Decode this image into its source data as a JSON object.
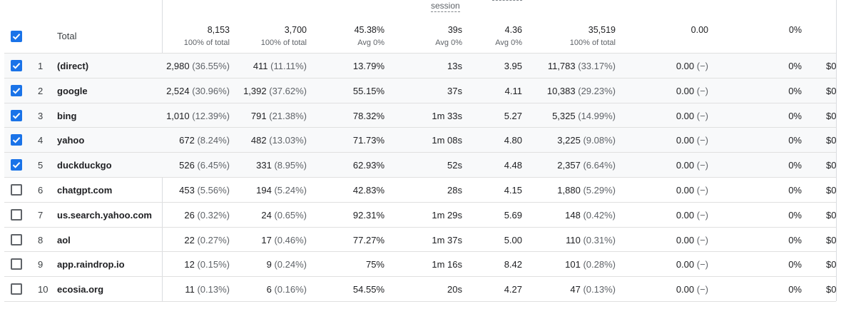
{
  "header": {
    "session_label": "session",
    "total_label": "Total",
    "totals": [
      {
        "value": "8,153",
        "sub": "100% of total"
      },
      {
        "value": "3,700",
        "sub": "100% of total"
      },
      {
        "value": "45.38%",
        "sub": "Avg 0%"
      },
      {
        "value": "39s",
        "sub": "Avg 0%"
      },
      {
        "value": "4.36",
        "sub": "Avg 0%"
      },
      {
        "value": "35,519",
        "sub": "100% of total"
      },
      {
        "value": "0.00",
        "sub": ""
      },
      {
        "value": "0%",
        "sub": ""
      }
    ]
  },
  "rows": [
    {
      "index": "1",
      "checked": true,
      "source": "(direct)",
      "c1": "2,980",
      "c1p": "(36.55%)",
      "c2": "411",
      "c2p": "(11.11%)",
      "c3": "13.79%",
      "c4": "13s",
      "c5": "3.95",
      "c6": "11,783",
      "c6p": "(33.17%)",
      "c7": "0.00",
      "c7p": "(−)",
      "c8": "0%",
      "c9": "$0"
    },
    {
      "index": "2",
      "checked": true,
      "source": "google",
      "c1": "2,524",
      "c1p": "(30.96%)",
      "c2": "1,392",
      "c2p": "(37.62%)",
      "c3": "55.15%",
      "c4": "37s",
      "c5": "4.11",
      "c6": "10,383",
      "c6p": "(29.23%)",
      "c7": "0.00",
      "c7p": "(−)",
      "c8": "0%",
      "c9": "$0"
    },
    {
      "index": "3",
      "checked": true,
      "source": "bing",
      "c1": "1,010",
      "c1p": "(12.39%)",
      "c2": "791",
      "c2p": "(21.38%)",
      "c3": "78.32%",
      "c4": "1m 33s",
      "c5": "5.27",
      "c6": "5,325",
      "c6p": "(14.99%)",
      "c7": "0.00",
      "c7p": "(−)",
      "c8": "0%",
      "c9": "$0"
    },
    {
      "index": "4",
      "checked": true,
      "source": "yahoo",
      "c1": "672",
      "c1p": "(8.24%)",
      "c2": "482",
      "c2p": "(13.03%)",
      "c3": "71.73%",
      "c4": "1m 08s",
      "c5": "4.80",
      "c6": "3,225",
      "c6p": "(9.08%)",
      "c7": "0.00",
      "c7p": "(−)",
      "c8": "0%",
      "c9": "$0"
    },
    {
      "index": "5",
      "checked": true,
      "source": "duckduckgo",
      "c1": "526",
      "c1p": "(6.45%)",
      "c2": "331",
      "c2p": "(8.95%)",
      "c3": "62.93%",
      "c4": "52s",
      "c5": "4.48",
      "c6": "2,357",
      "c6p": "(6.64%)",
      "c7": "0.00",
      "c7p": "(−)",
      "c8": "0%",
      "c9": "$0"
    },
    {
      "index": "6",
      "checked": false,
      "source": "chatgpt.com",
      "c1": "453",
      "c1p": "(5.56%)",
      "c2": "194",
      "c2p": "(5.24%)",
      "c3": "42.83%",
      "c4": "28s",
      "c5": "4.15",
      "c6": "1,880",
      "c6p": "(5.29%)",
      "c7": "0.00",
      "c7p": "(−)",
      "c8": "0%",
      "c9": "$0"
    },
    {
      "index": "7",
      "checked": false,
      "source": "us.search.yahoo.com",
      "c1": "26",
      "c1p": "(0.32%)",
      "c2": "24",
      "c2p": "(0.65%)",
      "c3": "92.31%",
      "c4": "1m 29s",
      "c5": "5.69",
      "c6": "148",
      "c6p": "(0.42%)",
      "c7": "0.00",
      "c7p": "(−)",
      "c8": "0%",
      "c9": "$0"
    },
    {
      "index": "8",
      "checked": false,
      "source": "aol",
      "c1": "22",
      "c1p": "(0.27%)",
      "c2": "17",
      "c2p": "(0.46%)",
      "c3": "77.27%",
      "c4": "1m 37s",
      "c5": "5.00",
      "c6": "110",
      "c6p": "(0.31%)",
      "c7": "0.00",
      "c7p": "(−)",
      "c8": "0%",
      "c9": "$0"
    },
    {
      "index": "9",
      "checked": false,
      "source": "app.raindrop.io",
      "c1": "12",
      "c1p": "(0.15%)",
      "c2": "9",
      "c2p": "(0.24%)",
      "c3": "75%",
      "c4": "1m 16s",
      "c5": "8.42",
      "c6": "101",
      "c6p": "(0.28%)",
      "c7": "0.00",
      "c7p": "(−)",
      "c8": "0%",
      "c9": "$0"
    },
    {
      "index": "10",
      "checked": false,
      "source": "ecosia.org",
      "c1": "11",
      "c1p": "(0.13%)",
      "c2": "6",
      "c2p": "(0.16%)",
      "c3": "54.55%",
      "c4": "20s",
      "c5": "4.27",
      "c6": "47",
      "c6p": "(0.13%)",
      "c7": "0.00",
      "c7p": "(−)",
      "c8": "0%",
      "c9": "$0"
    }
  ]
}
